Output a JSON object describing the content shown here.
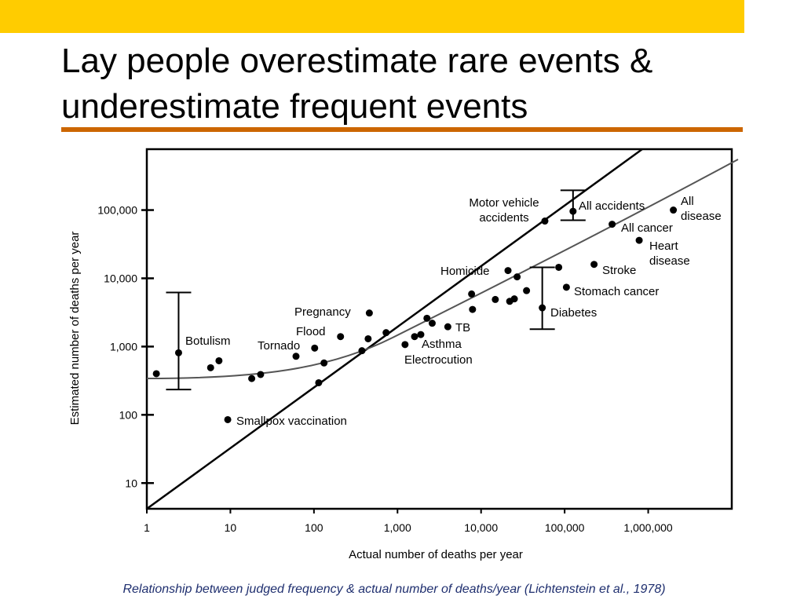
{
  "title": [
    "Lay people overestimate rare events &",
    "underestimate frequent events"
  ],
  "caption": "Relationship between judged frequency & actual number of deaths/year (Lichtenstein et al., 1978)",
  "chart_data": {
    "type": "scatter",
    "x_label": "Actual number of deaths per year",
    "y_label": "Estimated number of deaths per year",
    "log_x": true,
    "log_y": true,
    "xlim": [
      1,
      10000000
    ],
    "ylim": [
      4.2,
      780000
    ],
    "xticks": [
      1,
      10,
      100,
      {
        "value": 1000,
        "label": "1,000"
      },
      {
        "value": 10000,
        "label": "10,000"
      },
      {
        "value": 100000,
        "label": "100,000"
      },
      {
        "value": 1000000,
        "label": "1,000,000"
      }
    ],
    "yticks": [
      10,
      100,
      {
        "value": 1000,
        "label": "1,000"
      },
      {
        "value": 10000,
        "label": "10,000"
      },
      {
        "value": 100000,
        "label": "100,000"
      }
    ],
    "color": "#000000",
    "x": [
      1.3,
      2.4,
      5.8,
      7.3,
      9.3,
      18,
      23,
      61,
      102,
      114,
      132,
      208,
      375,
      445,
      460,
      730,
      1230,
      1600,
      1900,
      2250,
      2600,
      4000,
      7700,
      7900,
      14800,
      21000,
      22000,
      25000,
      27000,
      35000,
      54000,
      58000,
      85000,
      105000,
      126000,
      225000,
      370000,
      780000,
      2000000
    ],
    "values": [
      400,
      810,
      490,
      620,
      85,
      340,
      390,
      720,
      950,
      295,
      575,
      1400,
      870,
      1300,
      3100,
      1600,
      1070,
      1400,
      1500,
      2600,
      2200,
      1950,
      5900,
      3500,
      4900,
      13000,
      4600,
      5000,
      10500,
      6600,
      3700,
      69000,
      14500,
      7400,
      96000,
      16000,
      62000,
      36000,
      100000
    ],
    "ranges": [
      {
        "x": 2.4,
        "low": 235,
        "high": 6200
      },
      {
        "x": 54000,
        "low": 1800,
        "high": 14500
      },
      {
        "x": 126000,
        "low": 71000,
        "high": 195000
      }
    ],
    "annotations": [
      [
        "Motor vehicle",
        "accidents"
      ],
      [
        "All accidents"
      ],
      [
        "All",
        "disease"
      ],
      [
        "All cancer"
      ],
      [
        "Heart",
        "disease"
      ],
      [
        "Homicide"
      ],
      [
        "Stroke"
      ],
      [
        "Stomach cancer"
      ],
      [
        "Diabetes"
      ],
      [
        "Pregnancy"
      ],
      [
        "Flood"
      ],
      [
        "TB"
      ],
      [
        "Botulism"
      ],
      [
        "Tornado"
      ],
      [
        "Asthma"
      ],
      [
        "Electrocution"
      ],
      [
        "Smallpox vaccination"
      ]
    ]
  }
}
